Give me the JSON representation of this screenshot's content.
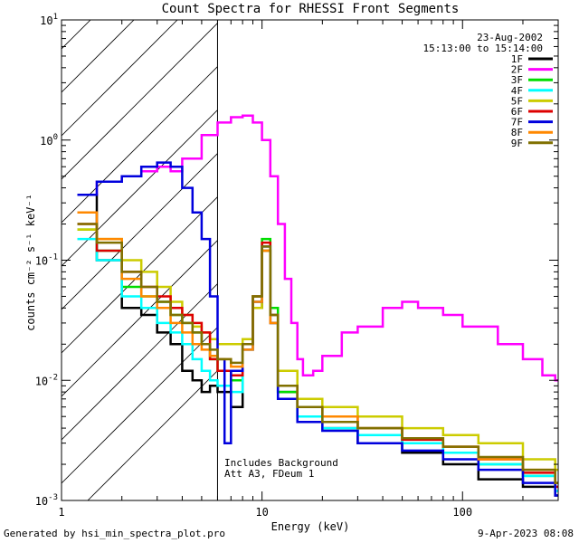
{
  "chart_data": {
    "type": "line",
    "title": "Count Spectra for RHESSI Front Segments",
    "xlabel": "Energy (keV)",
    "ylabel": "counts cm⁻² s⁻¹ keV⁻¹",
    "xscale": "log",
    "yscale": "log",
    "xlim": [
      1,
      300
    ],
    "ylim": [
      0.001,
      10
    ],
    "x_tick_labels": [
      {
        "value": 1,
        "label": "1"
      },
      {
        "value": 10,
        "label": "10"
      },
      {
        "value": 100,
        "label": "100"
      }
    ],
    "y_tick_labels": [
      {
        "value": 0.001,
        "base": "10",
        "exp": "-3"
      },
      {
        "value": 0.01,
        "base": "10",
        "exp": "-2"
      },
      {
        "value": 0.1,
        "base": "10",
        "exp": "-1"
      },
      {
        "value": 1,
        "base": "10",
        "exp": "0"
      },
      {
        "value": 10,
        "base": "10",
        "exp": "1"
      }
    ],
    "attenuator_shade_range_keV": [
      1,
      6
    ],
    "legend": {
      "position": "top-right",
      "date": "23-Aug-2002",
      "time_range": "15:13:00 to 15:14:00"
    },
    "annotations": [
      "Includes Background",
      "Att A3, FDeum 1"
    ],
    "series": [
      {
        "name": "1F",
        "color": "#000000",
        "points": [
          [
            1.2,
            0.35
          ],
          [
            1.5,
            0.1
          ],
          [
            2,
            0.04
          ],
          [
            2.5,
            0.035
          ],
          [
            3,
            0.025
          ],
          [
            3.5,
            0.02
          ],
          [
            4,
            0.012
          ],
          [
            4.5,
            0.01
          ],
          [
            5,
            0.008
          ],
          [
            5.5,
            0.009
          ],
          [
            6,
            0.008
          ],
          [
            7,
            0.006
          ],
          [
            8,
            0.02
          ],
          [
            9,
            0.04
          ],
          [
            10,
            0.12
          ],
          [
            11,
            0.03
          ],
          [
            12,
            0.008
          ],
          [
            15,
            0.006
          ],
          [
            20,
            0.004
          ],
          [
            30,
            0.003
          ],
          [
            50,
            0.0025
          ],
          [
            80,
            0.002
          ],
          [
            120,
            0.0015
          ],
          [
            200,
            0.0013
          ],
          [
            290,
            0.0011
          ]
        ]
      },
      {
        "name": "2F",
        "color": "#ff00ff",
        "points": [
          [
            1.2,
            0.35
          ],
          [
            1.5,
            0.45
          ],
          [
            2,
            0.5
          ],
          [
            2.5,
            0.55
          ],
          [
            3,
            0.6
          ],
          [
            3.5,
            0.55
          ],
          [
            4,
            0.7
          ],
          [
            5,
            1.1
          ],
          [
            6,
            1.4
          ],
          [
            7,
            1.55
          ],
          [
            8,
            1.6
          ],
          [
            9,
            1.4
          ],
          [
            10,
            1.0
          ],
          [
            11,
            0.5
          ],
          [
            12,
            0.2
          ],
          [
            13,
            0.07
          ],
          [
            14,
            0.03
          ],
          [
            15,
            0.015
          ],
          [
            16,
            0.011
          ],
          [
            18,
            0.012
          ],
          [
            20,
            0.016
          ],
          [
            25,
            0.025
          ],
          [
            30,
            0.028
          ],
          [
            40,
            0.04
          ],
          [
            50,
            0.045
          ],
          [
            60,
            0.04
          ],
          [
            80,
            0.035
          ],
          [
            100,
            0.028
          ],
          [
            150,
            0.02
          ],
          [
            200,
            0.015
          ],
          [
            250,
            0.011
          ],
          [
            290,
            0.01
          ]
        ]
      },
      {
        "name": "3F",
        "color": "#00dd00",
        "points": [
          [
            1.2,
            0.18
          ],
          [
            1.5,
            0.12
          ],
          [
            2,
            0.06
          ],
          [
            2.5,
            0.05
          ],
          [
            3,
            0.045
          ],
          [
            3.5,
            0.035
          ],
          [
            4,
            0.03
          ],
          [
            4.5,
            0.025
          ],
          [
            5,
            0.02
          ],
          [
            5.5,
            0.015
          ],
          [
            6,
            0.012
          ],
          [
            7,
            0.01
          ],
          [
            8,
            0.02
          ],
          [
            9,
            0.05
          ],
          [
            10,
            0.15
          ],
          [
            11,
            0.04
          ],
          [
            12,
            0.008
          ],
          [
            15,
            0.005
          ],
          [
            20,
            0.0045
          ],
          [
            30,
            0.004
          ],
          [
            50,
            0.003
          ],
          [
            80,
            0.0025
          ],
          [
            120,
            0.002
          ],
          [
            200,
            0.0016
          ],
          [
            290,
            0.0013
          ]
        ]
      },
      {
        "name": "4F",
        "color": "#00ffff",
        "points": [
          [
            1.2,
            0.15
          ],
          [
            1.5,
            0.1
          ],
          [
            2,
            0.05
          ],
          [
            2.5,
            0.04
          ],
          [
            3,
            0.03
          ],
          [
            3.5,
            0.025
          ],
          [
            4,
            0.02
          ],
          [
            4.5,
            0.015
          ],
          [
            5,
            0.012
          ],
          [
            5.5,
            0.01
          ],
          [
            6,
            0.009
          ],
          [
            7,
            0.008
          ],
          [
            8,
            0.018
          ],
          [
            9,
            0.045
          ],
          [
            10,
            0.13
          ],
          [
            11,
            0.035
          ],
          [
            12,
            0.007
          ],
          [
            15,
            0.005
          ],
          [
            20,
            0.004
          ],
          [
            30,
            0.0035
          ],
          [
            50,
            0.003
          ],
          [
            80,
            0.0025
          ],
          [
            120,
            0.002
          ],
          [
            200,
            0.0016
          ],
          [
            290,
            0.0012
          ]
        ]
      },
      {
        "name": "5F",
        "color": "#cccc00",
        "points": [
          [
            1.2,
            0.18
          ],
          [
            1.5,
            0.15
          ],
          [
            2,
            0.1
          ],
          [
            2.5,
            0.08
          ],
          [
            3,
            0.06
          ],
          [
            3.5,
            0.045
          ],
          [
            4,
            0.035
          ],
          [
            4.5,
            0.028
          ],
          [
            5,
            0.025
          ],
          [
            5.5,
            0.022
          ],
          [
            6,
            0.02
          ],
          [
            7,
            0.02
          ],
          [
            8,
            0.022
          ],
          [
            9,
            0.04
          ],
          [
            10,
            0.12
          ],
          [
            11,
            0.03
          ],
          [
            12,
            0.012
          ],
          [
            15,
            0.007
          ],
          [
            20,
            0.006
          ],
          [
            30,
            0.005
          ],
          [
            50,
            0.004
          ],
          [
            80,
            0.0035
          ],
          [
            120,
            0.003
          ],
          [
            200,
            0.0022
          ],
          [
            290,
            0.0018
          ]
        ]
      },
      {
        "name": "6F",
        "color": "#dd0000",
        "points": [
          [
            1.2,
            0.2
          ],
          [
            1.5,
            0.12
          ],
          [
            2,
            0.08
          ],
          [
            2.5,
            0.06
          ],
          [
            3,
            0.05
          ],
          [
            3.5,
            0.04
          ],
          [
            4,
            0.035
          ],
          [
            4.5,
            0.03
          ],
          [
            5,
            0.025
          ],
          [
            5.5,
            0.015
          ],
          [
            6,
            0.012
          ],
          [
            7,
            0.011
          ],
          [
            8,
            0.02
          ],
          [
            9,
            0.05
          ],
          [
            10,
            0.14
          ],
          [
            11,
            0.035
          ],
          [
            12,
            0.009
          ],
          [
            15,
            0.006
          ],
          [
            20,
            0.005
          ],
          [
            30,
            0.004
          ],
          [
            50,
            0.0032
          ],
          [
            80,
            0.0028
          ],
          [
            120,
            0.0022
          ],
          [
            200,
            0.0017
          ],
          [
            290,
            0.0013
          ]
        ]
      },
      {
        "name": "7F",
        "color": "#0000dd",
        "points": [
          [
            1.2,
            0.35
          ],
          [
            1.5,
            0.45
          ],
          [
            2,
            0.5
          ],
          [
            2.5,
            0.6
          ],
          [
            3,
            0.65
          ],
          [
            3.5,
            0.6
          ],
          [
            4,
            0.4
          ],
          [
            4.5,
            0.25
          ],
          [
            5,
            0.15
          ],
          [
            5.5,
            0.05
          ],
          [
            6,
            0.015
          ],
          [
            6.5,
            0.003
          ],
          [
            7,
            0.012
          ],
          [
            8,
            0.018
          ],
          [
            9,
            0.045
          ],
          [
            10,
            0.13
          ],
          [
            11,
            0.03
          ],
          [
            12,
            0.007
          ],
          [
            15,
            0.0045
          ],
          [
            20,
            0.0038
          ],
          [
            30,
            0.003
          ],
          [
            50,
            0.0026
          ],
          [
            80,
            0.0022
          ],
          [
            120,
            0.0018
          ],
          [
            200,
            0.0014
          ],
          [
            290,
            0.0011
          ]
        ]
      },
      {
        "name": "8F",
        "color": "#ff8800",
        "points": [
          [
            1.2,
            0.25
          ],
          [
            1.5,
            0.15
          ],
          [
            2,
            0.07
          ],
          [
            2.5,
            0.05
          ],
          [
            3,
            0.04
          ],
          [
            3.5,
            0.03
          ],
          [
            4,
            0.025
          ],
          [
            4.5,
            0.02
          ],
          [
            5,
            0.018
          ],
          [
            5.5,
            0.016
          ],
          [
            6,
            0.015
          ],
          [
            7,
            0.013
          ],
          [
            8,
            0.018
          ],
          [
            9,
            0.045
          ],
          [
            10,
            0.12
          ],
          [
            11,
            0.03
          ],
          [
            12,
            0.009
          ],
          [
            15,
            0.006
          ],
          [
            20,
            0.005
          ],
          [
            30,
            0.004
          ],
          [
            50,
            0.0033
          ],
          [
            80,
            0.0028
          ],
          [
            120,
            0.0022
          ],
          [
            200,
            0.0018
          ],
          [
            290,
            0.0014
          ]
        ]
      },
      {
        "name": "9F",
        "color": "#807000",
        "points": [
          [
            1.2,
            0.2
          ],
          [
            1.5,
            0.14
          ],
          [
            2,
            0.08
          ],
          [
            2.5,
            0.06
          ],
          [
            3,
            0.045
          ],
          [
            3.5,
            0.035
          ],
          [
            4,
            0.03
          ],
          [
            4.5,
            0.025
          ],
          [
            5,
            0.02
          ],
          [
            5.5,
            0.018
          ],
          [
            6,
            0.015
          ],
          [
            7,
            0.014
          ],
          [
            8,
            0.02
          ],
          [
            9,
            0.05
          ],
          [
            10,
            0.13
          ],
          [
            11,
            0.035
          ],
          [
            12,
            0.009
          ],
          [
            15,
            0.006
          ],
          [
            20,
            0.0045
          ],
          [
            30,
            0.004
          ],
          [
            50,
            0.0033
          ],
          [
            80,
            0.0028
          ],
          [
            120,
            0.0023
          ],
          [
            200,
            0.0018
          ],
          [
            290,
            0.0014
          ]
        ]
      }
    ]
  },
  "footer": {
    "generated_by": "Generated by hsi_min_spectra_plot.pro",
    "timestamp": "9-Apr-2023 08:08"
  }
}
